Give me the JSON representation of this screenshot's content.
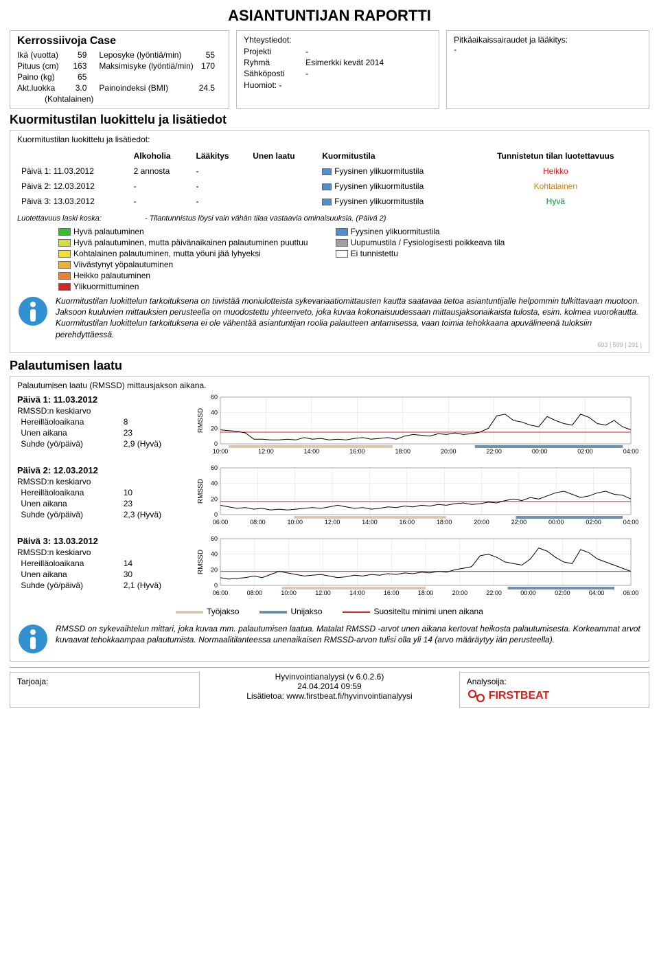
{
  "title": "ASIANTUNTIJAN RAPORTTI",
  "case_name": "Kerrossiivoja Case",
  "personal": {
    "age_label": "Ikä (vuotta)",
    "age": "59",
    "height_label": "Pituus (cm)",
    "height": "163",
    "weight_label": "Paino (kg)",
    "weight": "65",
    "actclass_label": "Akt.luokka",
    "actclass": "3.0",
    "actclass_note": "(Kohtalainen)",
    "resthr_label": "Leposyke (lyöntiä/min)",
    "resthr": "55",
    "maxhr_label": "Maksimisyke (lyöntiä/min)",
    "maxhr": "170",
    "bmi_label": "Painoindeksi (BMI)",
    "bmi": "24.5"
  },
  "contacts": {
    "header": "Yhteystiedot:",
    "project_label": "Projekti",
    "project": "-",
    "group_label": "Ryhmä",
    "group": "Esimerkki kevät 2014",
    "email_label": "Sähköposti",
    "email": "-",
    "notes_label": "Huomiot:",
    "notes_value": "-"
  },
  "chronic": {
    "header": "Pitkäaikaissairaudet ja lääkitys:",
    "value": "-"
  },
  "classification": {
    "section_title": "Kuormitustilan luokittelu ja lisätiedot",
    "subtitle": "Kuormitustilan luokittelu ja lisätiedot:",
    "columns": {
      "alcohol": "Alkoholia",
      "medication": "Lääkitys",
      "sleep": "Unen laatu",
      "state": "Kuormitustila",
      "reliability": "Tunnistetun tilan luotettavuus"
    },
    "rows": [
      {
        "day": "Päivä 1: 11.03.2012",
        "alcohol": "2 annosta",
        "medication": "-",
        "sleep": "",
        "state": "Fyysinen ylikuormitustila",
        "state_color": "#5090d0",
        "reliability": "Heikko",
        "rel_class": "reliability-weak"
      },
      {
        "day": "Päivä 2: 12.03.2012",
        "alcohol": "-",
        "medication": "-",
        "sleep": "",
        "state": "Fyysinen ylikuormitustila",
        "state_color": "#5090d0",
        "reliability": "Kohtalainen",
        "rel_class": "reliability-med"
      },
      {
        "day": "Päivä 3: 13.03.2012",
        "alcohol": "-",
        "medication": "-",
        "sleep": "",
        "state": "Fyysinen ylikuormitustila",
        "state_color": "#5090d0",
        "reliability": "Hyvä",
        "rel_class": "reliability-good"
      }
    ],
    "reliability_note_label": "Luotettavuus laski koska:",
    "reliability_note": "- Tilantunnistus löysi vain vähän tilaa vastaavia ominaisuuksia. (Päivä 2)"
  },
  "legend": {
    "left": [
      {
        "color": "#30c030",
        "text": "Hyvä palautuminen"
      },
      {
        "color": "#d0e040",
        "text": "Hyvä palautuminen, mutta päivänaikainen palautuminen puuttuu"
      },
      {
        "color": "#f0e030",
        "text": "Kohtalainen palautuminen, mutta yöuni jää lyhyeksi"
      },
      {
        "color": "#f0b030",
        "text": "Viivästynyt yöpalautuminen"
      },
      {
        "color": "#f08030",
        "text": "Heikko palautuminen"
      },
      {
        "color": "#e02020",
        "text": "Ylikuormittuminen"
      }
    ],
    "right": [
      {
        "color": "#5090d0",
        "text": "Fyysinen ylikuormitustila"
      },
      {
        "color": "#a0a0a0",
        "text": "Uupumustila / Fysiologisesti poikkeava tila"
      },
      {
        "color": "#ffffff",
        "text": "Ei tunnistettu"
      }
    ]
  },
  "info1": "Kuormitustilan luokittelun tarkoituksena on tiivistää moniulotteista sykevariaatiomittausten kautta saatavaa tietoa asiantuntijalle helpommin tulkittavaan muotoon. Jaksoon kuuluvien mittauksien perusteella on muodostettu yhteenveto, joka kuvaa kokonaisuudessaan mittausjaksonaikaista tulosta, esim. kolmea vuorokautta. Kuormitustilan luokittelun tarkoituksena ei ole vähentää asiantuntijan roolia palautteen antamisessa, vaan toimia tehokkaana apuvälineenä tuloksiin perehdyttäessä.",
  "info1_code": "693 | 599 | 291 |",
  "recovery": {
    "section_title": "Palautumisen laatu",
    "subtitle": "Palautumisen laatu (RMSSD) mittausjakson aikana.",
    "ylabel": "RMSSD",
    "ylim": [
      0,
      60
    ],
    "yticks": [
      0,
      20,
      40,
      60
    ],
    "row_labels": {
      "rmssd_avg": "RMSSD:n keskiarvo",
      "awake": "Hereilläoloaikana",
      "sleep": "Unen aikana",
      "ratio": "Suhde (yö/päivä)"
    },
    "days": [
      {
        "title": "Päivä 1: 11.03.2012",
        "awake": "8",
        "sleep_v": "23",
        "ratio": "2,9 (Hyvä)",
        "xticks": [
          "10:00",
          "12:00",
          "14:00",
          "16:00",
          "18:00",
          "20:00",
          "22:00",
          "00:00",
          "02:00",
          "04:00"
        ],
        "reference": 15,
        "work_bars": [
          [
            0.02,
            0.42
          ]
        ],
        "sleep_bars": [
          [
            0.62,
            0.98
          ]
        ],
        "series": [
          18,
          17,
          16,
          14,
          6,
          6,
          5,
          5,
          6,
          5,
          8,
          6,
          7,
          5,
          6,
          5,
          7,
          8,
          6,
          7,
          8,
          6,
          10,
          12,
          11,
          10,
          13,
          12,
          14,
          12,
          13,
          15,
          20,
          36,
          38,
          30,
          28,
          24,
          22,
          35,
          30,
          26,
          24,
          38,
          34,
          26,
          24,
          30,
          22,
          18
        ]
      },
      {
        "title": "Päivä 2: 12.03.2012",
        "awake": "10",
        "sleep_v": "23",
        "ratio": "2,3 (Hyvä)",
        "xticks": [
          "06:00",
          "08:00",
          "10:00",
          "12:00",
          "14:00",
          "16:00",
          "18:00",
          "20:00",
          "22:00",
          "00:00",
          "02:00",
          "04:00"
        ],
        "reference": 17,
        "work_bars": [
          [
            0.18,
            0.55
          ]
        ],
        "sleep_bars": [
          [
            0.72,
            0.98
          ]
        ],
        "series": [
          12,
          10,
          8,
          9,
          7,
          8,
          6,
          7,
          6,
          7,
          8,
          9,
          8,
          10,
          12,
          10,
          8,
          9,
          7,
          8,
          10,
          9,
          11,
          10,
          12,
          11,
          13,
          12,
          14,
          15,
          13,
          14,
          16,
          15,
          18,
          20,
          18,
          22,
          20,
          24,
          28,
          30,
          26,
          22,
          24,
          28,
          30,
          26,
          25,
          20
        ]
      },
      {
        "title": "Päivä 3: 13.03.2012",
        "awake": "14",
        "sleep_v": "30",
        "ratio": "2,1 (Hyvä)",
        "xticks": [
          "06:00",
          "08:00",
          "10:00",
          "12:00",
          "14:00",
          "16:00",
          "18:00",
          "20:00",
          "22:00",
          "00:00",
          "02:00",
          "04:00",
          "06:00"
        ],
        "reference": 18,
        "work_bars": [
          [
            0.15,
            0.5
          ]
        ],
        "sleep_bars": [
          [
            0.7,
            0.96
          ]
        ],
        "series": [
          10,
          8,
          9,
          10,
          12,
          10,
          14,
          18,
          16,
          14,
          12,
          13,
          14,
          12,
          10,
          11,
          13,
          12,
          14,
          13,
          15,
          14,
          16,
          15,
          17,
          16,
          18,
          17,
          20,
          22,
          24,
          38,
          40,
          36,
          30,
          28,
          26,
          34,
          48,
          44,
          36,
          30,
          28,
          46,
          42,
          34,
          30,
          26,
          22,
          18
        ]
      }
    ],
    "chart_legend": {
      "work": {
        "label": "Työjakso",
        "color": "#d8c9b0"
      },
      "sleep": {
        "label": "Unijakso",
        "color": "#7090b0"
      },
      "ref": {
        "label": "Suositeltu minimi unen aikana",
        "color": "#e02020"
      }
    },
    "colors": {
      "grid": "#dddddd",
      "line": "#000000",
      "bg": "#ffffff"
    }
  },
  "info2": "RMSSD on sykevaihtelun mittari, joka kuvaa mm. palautumisen laatua. Matalat RMSSD -arvot unen aikana kertovat heikosta palautumisesta. Korkeammat arvot kuvaavat tehokkaampaa palautumista. Normaalitilanteessa unenaikaisen RMSSD-arvon tulisi olla yli 14 (arvo määräytyy iän perusteella).",
  "footer": {
    "provider_label": "Tarjoaja:",
    "center1": "Hyvinvointianalyysi (v 6.0.2.6)",
    "center2": "24.04.2014 09:59",
    "center3": "Lisätietoa: www.firstbeat.fi/hyvinvointianalyysi",
    "analyst_label": "Analysoija:",
    "logo_text": "FIRSTBEAT",
    "logo_color": "#d02020"
  }
}
